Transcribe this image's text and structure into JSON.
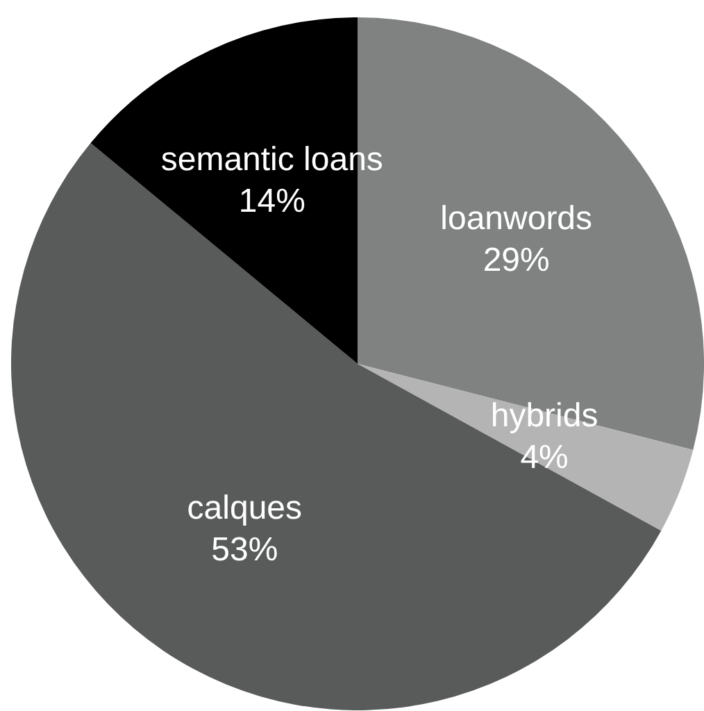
{
  "chart_data": {
    "type": "pie",
    "categories": [
      "loanwords",
      "hybrids",
      "calques",
      "semantic loans"
    ],
    "values": [
      29,
      4,
      53,
      14
    ],
    "value_labels": [
      "29%",
      "4%",
      "53%",
      "14%"
    ],
    "colors": [
      "#7f8280",
      "#b4b4b4",
      "#595b5a",
      "#000000"
    ],
    "legend": false
  }
}
